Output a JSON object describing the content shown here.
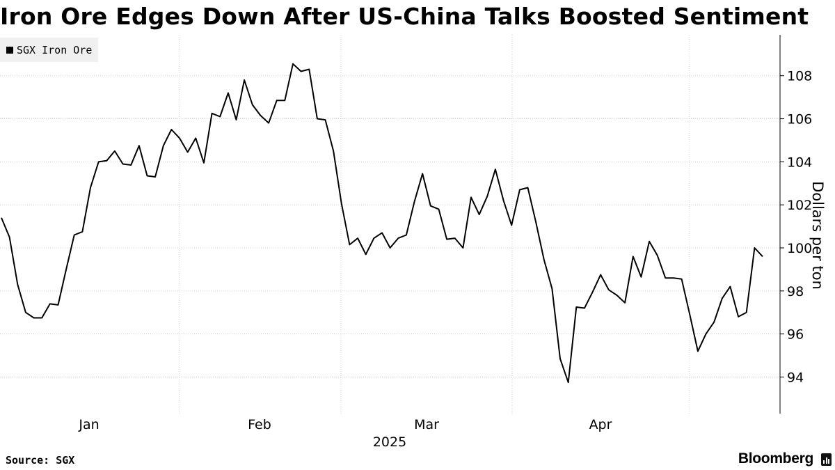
{
  "header": {
    "title": "Iron Ore Edges Down After US-China Talks Boosted Sentiment"
  },
  "legend": {
    "label": "SGX Iron Ore"
  },
  "footer": {
    "source": "Source: SGX",
    "brand": "Bloomberg"
  },
  "colors": {
    "line": "#000000",
    "grid": "#d0d0d0",
    "legend_bg": "#f0f0f0"
  },
  "chart_data": {
    "type": "line",
    "title": "Iron Ore Edges Down After US-China Talks Boosted Sentiment",
    "ylabel": "Dollars per ton",
    "xlabel": "2025",
    "ylim": [
      92.3,
      109.9
    ],
    "yticks": [
      94,
      96,
      98,
      100,
      102,
      104,
      106,
      108
    ],
    "month_ticks": [
      "Jan",
      "Feb",
      "Mar",
      "Apr"
    ],
    "year_label": "2025",
    "series": [
      {
        "name": "SGX Iron Ore",
        "values": [
          101.4,
          100.5,
          98.3,
          97.0,
          96.75,
          96.75,
          97.4,
          97.35,
          99.0,
          100.6,
          100.75,
          102.8,
          104.0,
          104.05,
          104.5,
          103.9,
          103.85,
          104.75,
          103.35,
          103.3,
          104.75,
          105.5,
          105.1,
          104.45,
          105.1,
          103.95,
          106.25,
          106.1,
          107.2,
          105.95,
          107.8,
          106.65,
          106.15,
          105.8,
          106.85,
          106.85,
          108.55,
          108.2,
          108.3,
          106.0,
          105.95,
          104.5,
          102.05,
          100.15,
          100.45,
          99.7,
          100.45,
          100.7,
          100.0,
          100.45,
          100.6,
          102.15,
          103.45,
          101.95,
          101.8,
          100.4,
          100.45,
          100.0,
          102.35,
          101.55,
          102.4,
          103.65,
          102.2,
          101.05,
          102.7,
          102.8,
          101.2,
          99.45,
          98.1,
          94.85,
          93.75,
          97.25,
          97.2,
          97.95,
          98.75,
          98.05,
          97.8,
          97.45,
          99.6,
          98.65,
          100.3,
          99.65,
          98.6,
          98.6,
          98.55,
          96.9,
          95.2,
          96.0,
          96.55,
          97.65,
          98.2,
          96.8,
          97.0,
          100.0,
          99.6
        ]
      }
    ]
  }
}
